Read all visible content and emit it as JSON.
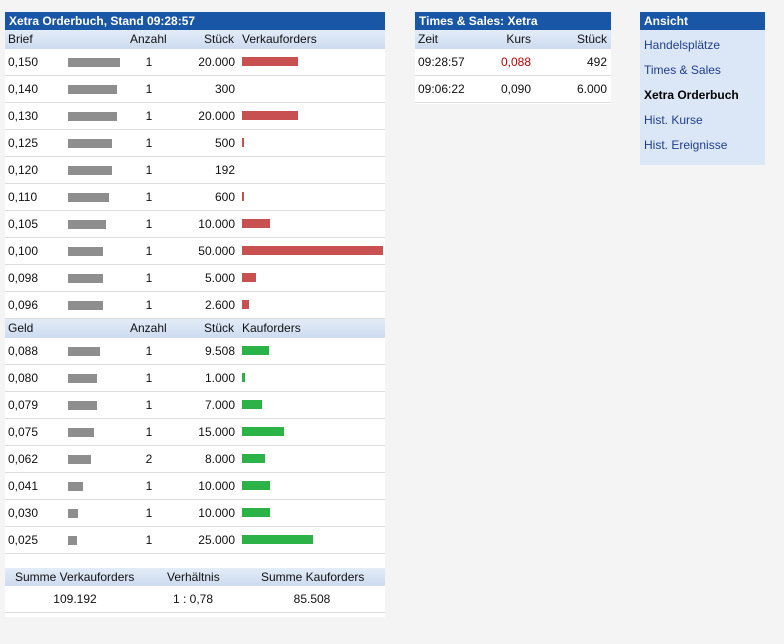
{
  "orderbook": {
    "title": "Xetra Orderbuch, Stand 09:28:57",
    "sell_headers": {
      "price": "Brief",
      "count": "Anzahl",
      "qty": "Stück",
      "orders": "Verkauforders"
    },
    "buy_headers": {
      "price": "Geld",
      "count": "Anzahl",
      "qty": "Stück",
      "orders": "Kauforders"
    },
    "sell_rows": [
      {
        "price": "0,150",
        "count": "1",
        "qty": "20.000",
        "cum_share": 0.9,
        "order_share": 0.4
      },
      {
        "price": "0,140",
        "count": "1",
        "qty": "300",
        "cum_share": 0.85,
        "order_share": 0.0
      },
      {
        "price": "0,130",
        "count": "1",
        "qty": "20.000",
        "cum_share": 0.85,
        "order_share": 0.4
      },
      {
        "price": "0,125",
        "count": "1",
        "qty": "500",
        "cum_share": 0.75,
        "order_share": 0.01
      },
      {
        "price": "0,120",
        "count": "1",
        "qty": "192",
        "cum_share": 0.75,
        "order_share": 0.0
      },
      {
        "price": "0,110",
        "count": "1",
        "qty": "600",
        "cum_share": 0.7,
        "order_share": 0.01
      },
      {
        "price": "0,105",
        "count": "1",
        "qty": "10.000",
        "cum_share": 0.65,
        "order_share": 0.2
      },
      {
        "price": "0,100",
        "count": "1",
        "qty": "50.000",
        "cum_share": 0.6,
        "order_share": 1.0
      },
      {
        "price": "0,098",
        "count": "1",
        "qty": "5.000",
        "cum_share": 0.6,
        "order_share": 0.1
      },
      {
        "price": "0,096",
        "count": "1",
        "qty": "2.600",
        "cum_share": 0.6,
        "order_share": 0.05
      }
    ],
    "buy_rows": [
      {
        "price": "0,088",
        "count": "1",
        "qty": "9.508",
        "cum_share": 0.55,
        "order_share": 0.19
      },
      {
        "price": "0,080",
        "count": "1",
        "qty": "1.000",
        "cum_share": 0.5,
        "order_share": 0.02
      },
      {
        "price": "0,079",
        "count": "1",
        "qty": "7.000",
        "cum_share": 0.5,
        "order_share": 0.14
      },
      {
        "price": "0,075",
        "count": "1",
        "qty": "15.000",
        "cum_share": 0.45,
        "order_share": 0.3
      },
      {
        "price": "0,062",
        "count": "2",
        "qty": "8.000",
        "cum_share": 0.4,
        "order_share": 0.16
      },
      {
        "price": "0,041",
        "count": "1",
        "qty": "10.000",
        "cum_share": 0.25,
        "order_share": 0.2
      },
      {
        "price": "0,030",
        "count": "1",
        "qty": "10.000",
        "cum_share": 0.18,
        "order_share": 0.2
      },
      {
        "price": "0,025",
        "count": "1",
        "qty": "25.000",
        "cum_share": 0.15,
        "order_share": 0.5
      }
    ],
    "summary": {
      "sell_label": "Summe Verkauforders",
      "ratio_label": "Verhältnis",
      "buy_label": "Summe Kauforders",
      "sell_value": "109.192",
      "ratio_value": "1 : 0,78",
      "buy_value": "85.508"
    }
  },
  "times_sales": {
    "title": "Times & Sales: Xetra",
    "headers": {
      "time": "Zeit",
      "price": "Kurs",
      "qty": "Stück"
    },
    "rows": [
      {
        "time": "09:28:57",
        "price": "0,088",
        "qty": "492",
        "down": true
      },
      {
        "time": "09:06:22",
        "price": "0,090",
        "qty": "6.000",
        "down": false
      }
    ]
  },
  "view": {
    "title": "Ansicht",
    "items": [
      {
        "label": "Handelsplätze",
        "active": false
      },
      {
        "label": "Times & Sales",
        "active": false
      },
      {
        "label": "Xetra Orderbuch",
        "active": true
      },
      {
        "label": "Hist. Kurse",
        "active": false
      },
      {
        "label": "Hist. Ereignisse",
        "active": false
      }
    ]
  },
  "colors": {
    "header": "#1a56a6",
    "sell": "#c85050",
    "buy": "#2bb348",
    "down_price": "#c00000",
    "link": "#1f3f8c"
  }
}
